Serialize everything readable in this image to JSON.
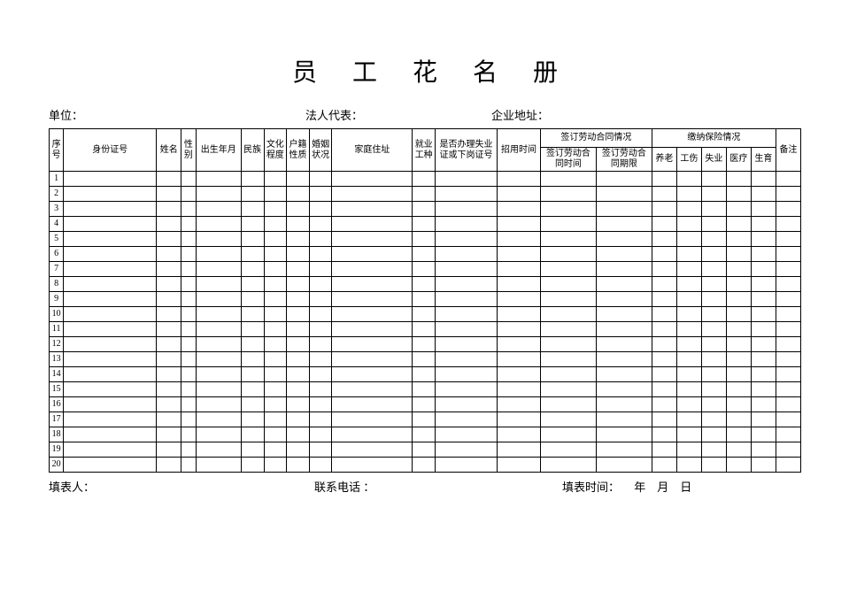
{
  "title": "员工花名册",
  "info": {
    "unit_label": "单位：",
    "legal_label": "法人代表：",
    "address_label": "企业地址："
  },
  "columns": {
    "seq": "序号",
    "id": "身份证号",
    "name": "姓名",
    "sex": "性别",
    "birth": "出生年月",
    "eth": "民族",
    "edu": "文化程度",
    "huji": "户籍性质",
    "marr": "婚姻状况",
    "addr": "家庭住址",
    "job": "就业工种",
    "unemp": "是否办理失业证或下岗证号",
    "hire": "招用时间",
    "contract_group": "签订劳动合同情况",
    "sign_time": "签订劳动合同时间",
    "sign_period": "签订劳动合同期限",
    "insurance_group": "缴纳保险情况",
    "ins_yanglao": "养老",
    "ins_gongshang": "工伤",
    "ins_shiye": "失业",
    "ins_yiliao": "医疗",
    "ins_shengyu": "生育",
    "note": "备注"
  },
  "rows": [
    "1",
    "2",
    "3",
    "4",
    "5",
    "6",
    "7",
    "8",
    "9",
    "10",
    "11",
    "12",
    "13",
    "14",
    "15",
    "16",
    "17",
    "18",
    "19",
    "20"
  ],
  "footer": {
    "filler_label": "填表人：",
    "phone_label": "联系电话 ：",
    "date_label": "填表时间：",
    "year": "年",
    "month": "月",
    "day": "日"
  }
}
